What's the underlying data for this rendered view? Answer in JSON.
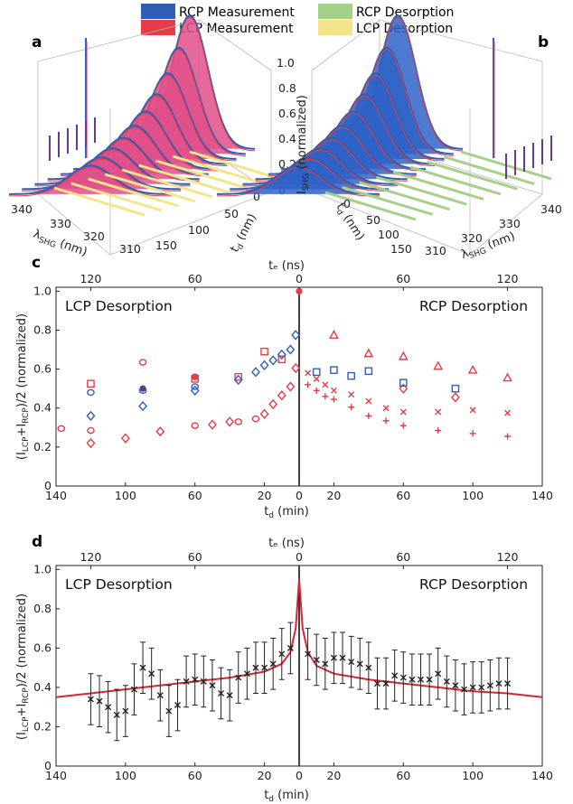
{
  "legend": {
    "items": [
      {
        "label": "RCP Measurement",
        "color": "#2f5fb5"
      },
      {
        "label": "LCP Measurement",
        "color": "#e63c48"
      },
      {
        "label": "RCP Desorption",
        "color": "#a5d08a"
      },
      {
        "label": "LCP Desorption",
        "color": "#f5e58a"
      }
    ]
  },
  "panel_a": {
    "label": "a",
    "z_ticks": [
      "0",
      "0.2",
      "0.4",
      "0.6",
      "0.8",
      "1.0"
    ],
    "td_ticks": [
      "0",
      "50",
      "100",
      "150"
    ],
    "td_axis_label": "t",
    "td_axis_sub": "d",
    "td_axis_unit": " (nm)",
    "lambda_ticks": [
      "340",
      "330",
      "320",
      "310"
    ],
    "lambda_axis_label": "λ",
    "lambda_axis_sub": "SHG",
    "lambda_axis_unit": " (nm)"
  },
  "panel_b": {
    "label": "b",
    "z_axis_label": "I",
    "z_axis_sub": "SHG",
    "z_axis_unit": " (normalized)",
    "td_ticks": [
      "0",
      "50",
      "100",
      "150"
    ],
    "td_axis_label": "t",
    "td_axis_sub": "d",
    "td_axis_unit": " (nm)",
    "lambda_ticks": [
      "310",
      "320",
      "330",
      "340"
    ],
    "lambda_axis_label": "λ",
    "lambda_axis_sub": "SHG",
    "lambda_axis_unit": " (nm)"
  },
  "panel_c": {
    "label": "c",
    "top_axis_label": "tₑ (ns)",
    "bottom_axis_label": "t",
    "bottom_axis_sub": "d",
    "bottom_axis_unit": " (min)",
    "ylabel": "(I<sub>LCP</sub>+I<sub>RCP</sub>)/2 (normalized)",
    "left_region": "LCP Desorption",
    "right_region": "RCP Desorption"
  },
  "panel_d": {
    "label": "d",
    "top_axis_label": "tₑ (ns)",
    "bottom_axis_label": "t",
    "bottom_axis_sub": "d",
    "bottom_axis_unit": " (min)",
    "left_region": "LCP Desorption",
    "right_region": "RCP Desorption"
  },
  "chart_data": [
    {
      "type": "scatter",
      "panel": "c",
      "x_axis": {
        "bottom_ticks": [
          "140",
          "100",
          "60",
          "20",
          "0",
          "20",
          "60",
          "100",
          "140"
        ],
        "top_ticks": [
          "120",
          "60",
          "0",
          "60",
          "120"
        ],
        "xlim": [
          -140,
          140
        ]
      },
      "y_axis": {
        "ticks": [
          "0",
          "0.2",
          "0.4",
          "0.6",
          "0.8",
          "1.0"
        ],
        "ylim": [
          0,
          1.02
        ]
      },
      "series": [
        {
          "marker": "square",
          "color": "#e63c48",
          "points": [
            [
              -120,
              0.525
            ],
            [
              -60,
              0.55
            ],
            [
              -35,
              0.56
            ],
            [
              -20,
              0.69
            ],
            [
              -10,
              0.65
            ]
          ]
        },
        {
          "marker": "circle",
          "color": "#e63c48",
          "points": [
            [
              -137,
              0.295
            ],
            [
              -120,
              0.285
            ],
            [
              -90,
              0.635
            ],
            [
              -60,
              0.56
            ],
            [
              -60,
              0.31
            ],
            [
              -35,
              0.33
            ],
            [
              -25,
              0.345
            ]
          ]
        },
        {
          "marker": "circle",
          "color": "#2f5fb5",
          "points": [
            [
              -120,
              0.48
            ],
            [
              -90,
              0.49
            ],
            [
              -60,
              0.51
            ]
          ]
        },
        {
          "marker": "diamond",
          "color": "#2f5fb5",
          "points": [
            [
              -120,
              0.36
            ],
            [
              -90,
              0.41
            ],
            [
              -60,
              0.49
            ],
            [
              -35,
              0.545
            ],
            [
              -25,
              0.585
            ],
            [
              -20,
              0.62
            ],
            [
              -15,
              0.645
            ],
            [
              -10,
              0.675
            ],
            [
              -5,
              0.7
            ],
            [
              -2,
              0.775
            ]
          ]
        },
        {
          "marker": "diamond",
          "color": "#e63c48",
          "points": [
            [
              -120,
              0.22
            ],
            [
              -100,
              0.245
            ],
            [
              -80,
              0.28
            ],
            [
              -50,
              0.315
            ],
            [
              -40,
              0.33
            ],
            [
              -20,
              0.37
            ],
            [
              -15,
              0.42
            ],
            [
              -10,
              0.465
            ],
            [
              -5,
              0.51
            ],
            [
              -2,
              0.605
            ],
            [
              60,
              0.5
            ],
            [
              90,
              0.455
            ]
          ]
        },
        {
          "marker": "filled-circle",
          "color": "#e63c48",
          "points": [
            [
              0,
              1.0
            ],
            [
              -60,
              0.56
            ]
          ]
        },
        {
          "marker": "filled-circle",
          "color": "#6a3a8a",
          "points": [
            [
              -90,
              0.5
            ]
          ]
        },
        {
          "marker": "square",
          "color": "#2f5fb5",
          "points": [
            [
              10,
              0.585
            ],
            [
              20,
              0.595
            ],
            [
              30,
              0.565
            ],
            [
              40,
              0.59
            ],
            [
              60,
              0.53
            ],
            [
              90,
              0.5
            ]
          ]
        },
        {
          "marker": "triangle",
          "color": "#e63c48",
          "points": [
            [
              20,
              0.775
            ],
            [
              40,
              0.68
            ],
            [
              60,
              0.665
            ],
            [
              80,
              0.615
            ],
            [
              100,
              0.595
            ],
            [
              120,
              0.555
            ]
          ]
        },
        {
          "marker": "x",
          "color": "#e63c48",
          "points": [
            [
              5,
              0.58
            ],
            [
              10,
              0.55
            ],
            [
              15,
              0.52
            ],
            [
              20,
              0.49
            ],
            [
              30,
              0.47
            ],
            [
              40,
              0.435
            ],
            [
              50,
              0.4
            ],
            [
              60,
              0.38
            ],
            [
              80,
              0.38
            ],
            [
              100,
              0.39
            ],
            [
              120,
              0.375
            ]
          ]
        },
        {
          "marker": "plus",
          "color": "#e63c48",
          "points": [
            [
              5,
              0.52
            ],
            [
              10,
              0.49
            ],
            [
              15,
              0.46
            ],
            [
              20,
              0.445
            ],
            [
              30,
              0.405
            ],
            [
              40,
              0.36
            ],
            [
              50,
              0.335
            ],
            [
              60,
              0.31
            ],
            [
              80,
              0.285
            ],
            [
              100,
              0.27
            ],
            [
              120,
              0.255
            ]
          ]
        }
      ]
    },
    {
      "type": "line",
      "panel": "d",
      "x_axis": {
        "bottom_ticks": [
          "140",
          "100",
          "60",
          "20",
          "0",
          "20",
          "60",
          "100",
          "140"
        ],
        "top_ticks": [
          "120",
          "60",
          "0",
          "60",
          "120"
        ],
        "xlim": [
          -140,
          140
        ]
      },
      "y_axis": {
        "ticks": [
          "0",
          "0.2",
          "0.4",
          "0.6",
          "0.8",
          "1.0"
        ],
        "ylim": [
          0,
          1.02
        ]
      },
      "fit": {
        "color": "#d7262f",
        "points": [
          [
            -140,
            0.35
          ],
          [
            -120,
            0.37
          ],
          [
            -100,
            0.39
          ],
          [
            -80,
            0.41
          ],
          [
            -60,
            0.43
          ],
          [
            -40,
            0.45
          ],
          [
            -20,
            0.48
          ],
          [
            -10,
            0.52
          ],
          [
            -5,
            0.58
          ],
          [
            -2,
            0.7
          ],
          [
            0,
            0.95
          ],
          [
            2,
            0.7
          ],
          [
            5,
            0.58
          ],
          [
            10,
            0.51
          ],
          [
            20,
            0.47
          ],
          [
            40,
            0.44
          ],
          [
            60,
            0.42
          ],
          [
            80,
            0.4
          ],
          [
            100,
            0.38
          ],
          [
            120,
            0.37
          ],
          [
            140,
            0.35
          ]
        ]
      },
      "measurements": {
        "marker": "x",
        "color": "#222222",
        "points": [
          [
            -120,
            0.34
          ],
          [
            -115,
            0.33
          ],
          [
            -110,
            0.3
          ],
          [
            -105,
            0.26
          ],
          [
            -100,
            0.28
          ],
          [
            -95,
            0.39
          ],
          [
            -90,
            0.5
          ],
          [
            -85,
            0.47
          ],
          [
            -80,
            0.36
          ],
          [
            -75,
            0.28
          ],
          [
            -70,
            0.31
          ],
          [
            -65,
            0.43
          ],
          [
            -60,
            0.44
          ],
          [
            -55,
            0.43
          ],
          [
            -50,
            0.41
          ],
          [
            -45,
            0.37
          ],
          [
            -40,
            0.36
          ],
          [
            -35,
            0.45
          ],
          [
            -30,
            0.47
          ],
          [
            -25,
            0.5
          ],
          [
            -20,
            0.5
          ],
          [
            -15,
            0.52
          ],
          [
            -10,
            0.57
          ],
          [
            -5,
            0.6
          ],
          [
            5,
            0.57
          ],
          [
            10,
            0.54
          ],
          [
            15,
            0.52
          ],
          [
            20,
            0.55
          ],
          [
            25,
            0.55
          ],
          [
            30,
            0.53
          ],
          [
            35,
            0.52
          ],
          [
            40,
            0.5
          ],
          [
            45,
            0.42
          ],
          [
            50,
            0.42
          ],
          [
            55,
            0.46
          ],
          [
            60,
            0.45
          ],
          [
            65,
            0.44
          ],
          [
            70,
            0.44
          ],
          [
            75,
            0.44
          ],
          [
            80,
            0.47
          ],
          [
            85,
            0.43
          ],
          [
            90,
            0.41
          ],
          [
            95,
            0.39
          ],
          [
            100,
            0.4
          ],
          [
            105,
            0.4
          ],
          [
            110,
            0.41
          ],
          [
            115,
            0.42
          ],
          [
            120,
            0.42
          ]
        ],
        "error": 0.13
      }
    }
  ]
}
